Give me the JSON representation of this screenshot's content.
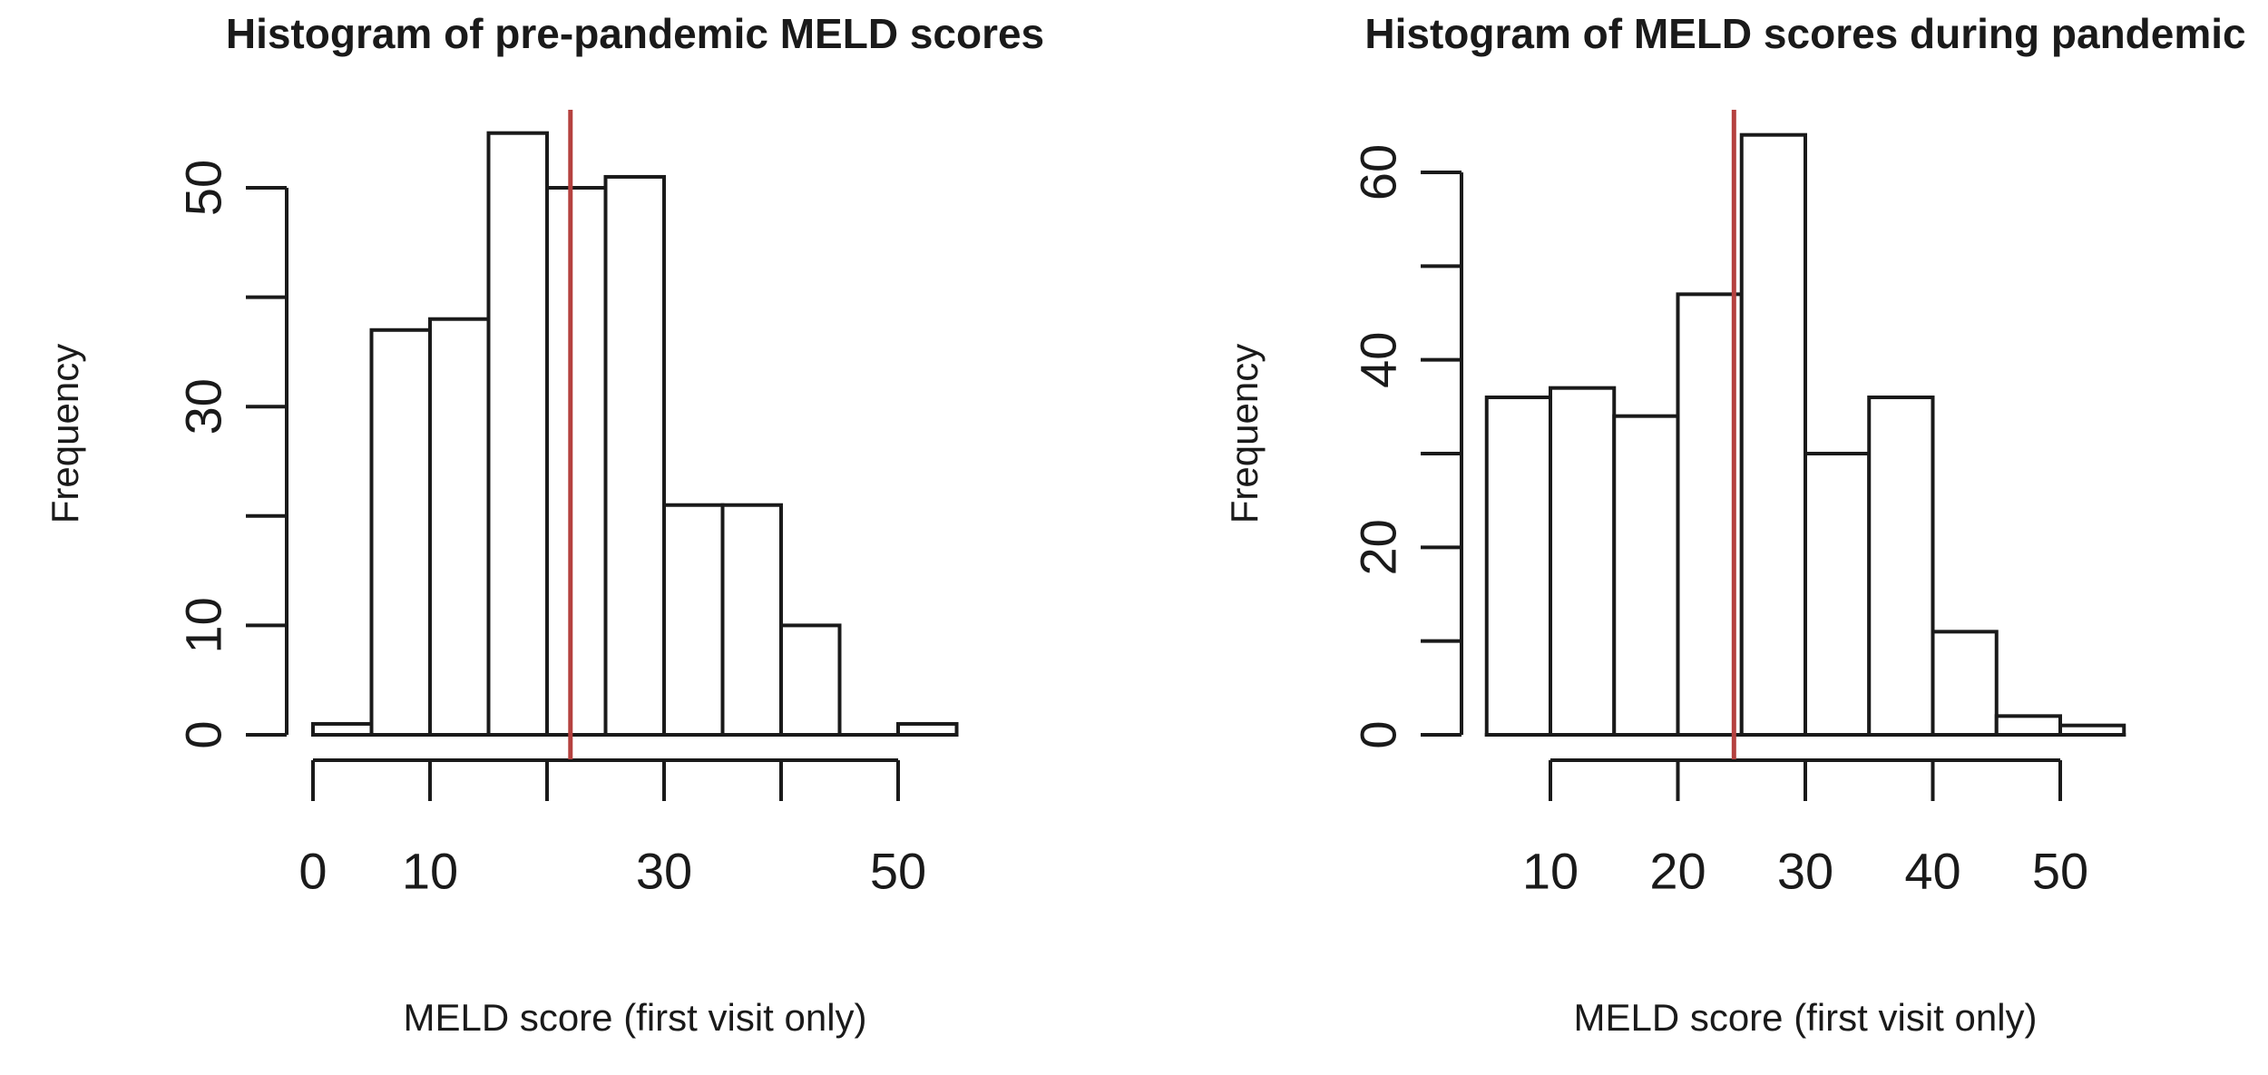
{
  "figure": {
    "background": "#ffffff",
    "ink_color": "#1a1a1a",
    "bar_fill": "#ffffff",
    "red_line_color": "#b5413f"
  },
  "chart_data": [
    {
      "type": "bar",
      "subtype": "histogram",
      "title": "Histogram of pre-pandemic MELD scores",
      "xlabel": "MELD score (first visit only)",
      "ylabel": "Frequency",
      "bin_edges": [
        0,
        5,
        10,
        15,
        20,
        25,
        30,
        35,
        40,
        45,
        50,
        55
      ],
      "values": [
        1,
        37,
        38,
        55,
        50,
        51,
        21,
        21,
        10,
        0,
        1
      ],
      "red_vline_x": 22,
      "xlim": [
        0,
        55
      ],
      "ylim": [
        0,
        55
      ],
      "grid": false,
      "legend": "none",
      "x_ticks": [
        {
          "v": 0,
          "label": "0"
        },
        {
          "v": 10,
          "label": "10"
        },
        {
          "v": 20,
          "label": ""
        },
        {
          "v": 30,
          "label": "30"
        },
        {
          "v": 40,
          "label": ""
        },
        {
          "v": 50,
          "label": "50"
        }
      ],
      "y_ticks": [
        {
          "v": 0,
          "label": "0"
        },
        {
          "v": 10,
          "label": "10"
        },
        {
          "v": 20,
          "label": ""
        },
        {
          "v": 30,
          "label": "30"
        },
        {
          "v": 40,
          "label": ""
        },
        {
          "v": 50,
          "label": "50"
        }
      ]
    },
    {
      "type": "bar",
      "subtype": "histogram",
      "title": "Histogram of MELD scores during pandemic",
      "xlabel": "MELD score (first visit only)",
      "ylabel": "Frequency",
      "bin_edges": [
        5,
        10,
        15,
        20,
        25,
        30,
        35,
        40,
        45,
        50,
        55
      ],
      "values": [
        36,
        37,
        34,
        47,
        64,
        30,
        36,
        11,
        2,
        1
      ],
      "red_vline_x": 24.4,
      "xlim": [
        5,
        55
      ],
      "ylim": [
        0,
        64
      ],
      "grid": false,
      "legend": "none",
      "x_ticks": [
        {
          "v": 10,
          "label": "10"
        },
        {
          "v": 20,
          "label": "20"
        },
        {
          "v": 30,
          "label": "30"
        },
        {
          "v": 40,
          "label": "40"
        },
        {
          "v": 50,
          "label": "50"
        }
      ],
      "y_ticks": [
        {
          "v": 0,
          "label": "0"
        },
        {
          "v": 10,
          "label": ""
        },
        {
          "v": 20,
          "label": "20"
        },
        {
          "v": 30,
          "label": ""
        },
        {
          "v": 40,
          "label": "40"
        },
        {
          "v": 50,
          "label": ""
        },
        {
          "v": 60,
          "label": "60"
        }
      ]
    }
  ]
}
